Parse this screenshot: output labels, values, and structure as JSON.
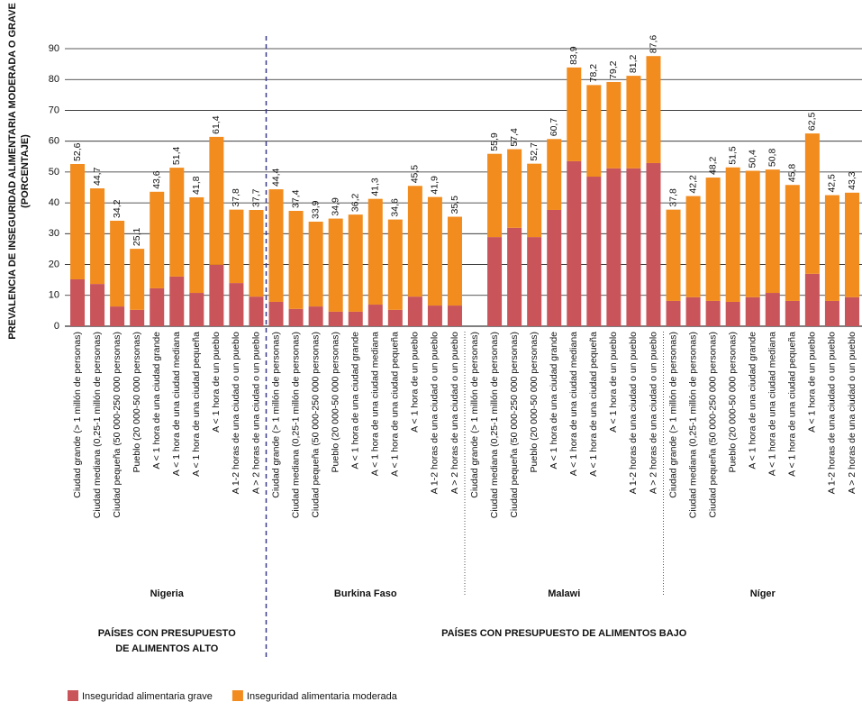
{
  "chart_data": {
    "type": "stacked_bar",
    "y_label": "PREVALENCIA DE INSEGURIDAD ALIMENTARIA MODERADA O GRAVE",
    "y_label_sub": "(PORCENTAJE)",
    "ylim": [
      0,
      90
    ],
    "yticks": [
      0,
      10,
      20,
      30,
      40,
      50,
      60,
      70,
      80,
      90
    ],
    "grid": true,
    "groups": [
      "Nigeria",
      "Burkina Faso",
      "Malawi",
      "Níger"
    ],
    "budget_groups": [
      [
        "PAÍSES CON PRESUPUESTO",
        "DE ALIMENTOS ALTO"
      ],
      [
        "PAÍSES CON PRESUPUESTO DE ALIMENTOS BAJO"
      ]
    ],
    "categories": [
      "Ciudad grande (> 1 millón de personas)",
      "Ciudad mediana (0,25-1 millón de personas)",
      "Ciudad pequeña (50 000-250 000 personas)",
      "Pueblo (20 000-50 000 personas)",
      "A < 1 hora de una ciudad grande",
      "A < 1 hora de una ciudad mediana",
      "A < 1 hora de una ciudad pequeña",
      "A < 1 hora de un pueblo",
      "A 1-2 horas de una ciudad o un pueblo",
      "A > 2 horas de una ciudad o un pueblo",
      "Ciudad grande (> 1 millón de personas)",
      "Ciudad mediana (0,25-1 millón de personas)",
      "Ciudad pequeña (50 000-250 000 personas)",
      "Pueblo (20 000-50 000 personas)",
      "A < 1 hora de una ciudad grande",
      "A < 1 hora de una ciudad mediana",
      "A < 1 hora de una ciudad pequeña",
      "A < 1 hora de un pueblo",
      "A 1-2 horas de una ciudad o un pueblo",
      "A > 2 horas de una ciudad o un pueblo",
      "Ciudad grande (> 1 millón de personas)",
      "Ciudad mediana (0,25-1 millón de personas)",
      "Ciudad pequeña (50 000-250 000 personas)",
      "Pueblo (20 000-50 000 personas)",
      "A < 1 hora de una ciudad grande",
      "A < 1 hora de una ciudad mediana",
      "A < 1 hora de una ciudad pequeña",
      "A < 1 hora de un pueblo",
      "A 1-2 horas de una ciudad o un pueblo",
      "A > 2 horas de una ciudad o un pueblo",
      "Ciudad grande (> 1 millón de personas)",
      "Ciudad mediana (0,25-1 millón de personas)",
      "Ciudad pequeña (50 000-250 000 personas)",
      "Pueblo (20 000-50 000 personas)",
      "A < 1 hora de una ciudad grande",
      "A < 1 hora de una ciudad mediana",
      "A < 1 hora de una ciudad pequeña",
      "A < 1 hora de un pueblo",
      "A 1-2 horas de una ciudad o un pueblo",
      "A > 2 horas de una ciudad o un pueblo"
    ],
    "series": [
      {
        "name": "Inseguridad alimentaria grave",
        "color": "#c9545a",
        "values": [
          15.2,
          13.7,
          6.4,
          5.3,
          12.3,
          16.1,
          10.8,
          19.9,
          14.0,
          9.6,
          7.9,
          5.6,
          6.4,
          4.7,
          4.7,
          7.0,
          5.3,
          9.6,
          6.7,
          6.7,
          null,
          28.9,
          31.9,
          28.9,
          37.7,
          53.5,
          48.5,
          51.2,
          51.2,
          52.9,
          8.2,
          9.4,
          8.2,
          7.9,
          9.4,
          10.8,
          8.2,
          17.0,
          8.2,
          9.4
        ]
      },
      {
        "name": "Inseguridad alimentaria moderada",
        "color": "#f28c1e",
        "values": [
          37.4,
          31.0,
          27.8,
          19.8,
          31.3,
          35.3,
          31.0,
          41.5,
          23.8,
          28.1,
          36.5,
          31.8,
          27.5,
          30.2,
          31.5,
          34.3,
          29.3,
          35.9,
          35.2,
          28.8,
          null,
          27.0,
          25.5,
          23.8,
          23.0,
          30.4,
          29.7,
          28.0,
          30.0,
          34.7,
          29.6,
          32.8,
          40.0,
          43.6,
          41.0,
          40.0,
          37.6,
          45.5,
          34.3,
          33.9
        ]
      }
    ],
    "totals": [
      52.6,
      44.7,
      34.2,
      25.1,
      43.6,
      51.4,
      41.8,
      61.4,
      37.8,
      37.7,
      44.4,
      37.4,
      33.9,
      34.9,
      36.2,
      41.3,
      34.6,
      45.5,
      41.9,
      35.5,
      null,
      55.9,
      57.4,
      52.7,
      60.7,
      83.9,
      78.2,
      79.2,
      81.2,
      87.6,
      37.8,
      42.2,
      48.2,
      51.5,
      50.4,
      50.8,
      45.8,
      62.5,
      42.5,
      43.3
    ],
    "total_labels": [
      "52,6",
      "44,7",
      "34,2",
      "25,1",
      "43,6",
      "51,4",
      "41,8",
      "61,4",
      "37,8",
      "37,7",
      "44,4",
      "37,4",
      "33,9",
      "34,9",
      "36,2",
      "41,3",
      "34,6",
      "45,5",
      "41,9",
      "35,5",
      null,
      "55,9",
      "57,4",
      "52,7",
      "60,7",
      "83,9",
      "78,2",
      "79,2",
      "81,2",
      "87,6",
      "37,8",
      "42,2",
      "48,2",
      "51,5",
      "50,4",
      "50,8",
      "45,8",
      "62,5",
      "42,5",
      "43,3"
    ]
  }
}
